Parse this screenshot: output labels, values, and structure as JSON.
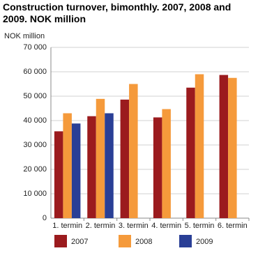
{
  "chart_data": {
    "type": "bar",
    "title": "Construction turnover, bimonthly. 2007, 2008 and 2009. NOK million",
    "y_label": "NOK million",
    "categories": [
      "1. termin",
      "2. termin",
      "3. termin",
      "4. termin",
      "5. termin",
      "6. termin"
    ],
    "series": [
      {
        "name": "2007",
        "color": "#9b1b1e",
        "values": [
          35600,
          41800,
          48600,
          41300,
          53500,
          58700
        ]
      },
      {
        "name": "2008",
        "color": "#f59a3b",
        "values": [
          43000,
          48900,
          55000,
          44700,
          59000,
          57500
        ]
      },
      {
        "name": "2009",
        "color": "#2a3f96",
        "values": [
          38800,
          43000,
          null,
          null,
          null,
          null
        ]
      }
    ],
    "ylim": [
      0,
      70000
    ],
    "yticks": [
      0,
      {
        "value": 10000,
        "label": "10 000"
      },
      {
        "value": 20000,
        "label": "20 000"
      },
      {
        "value": 30000,
        "label": "30 000"
      },
      {
        "value": 40000,
        "label": "40 000"
      },
      {
        "value": 50000,
        "label": "50 000"
      },
      {
        "value": 60000,
        "label": "60 000"
      },
      {
        "value": 70000,
        "label": "70 000"
      }
    ],
    "grid": true
  }
}
